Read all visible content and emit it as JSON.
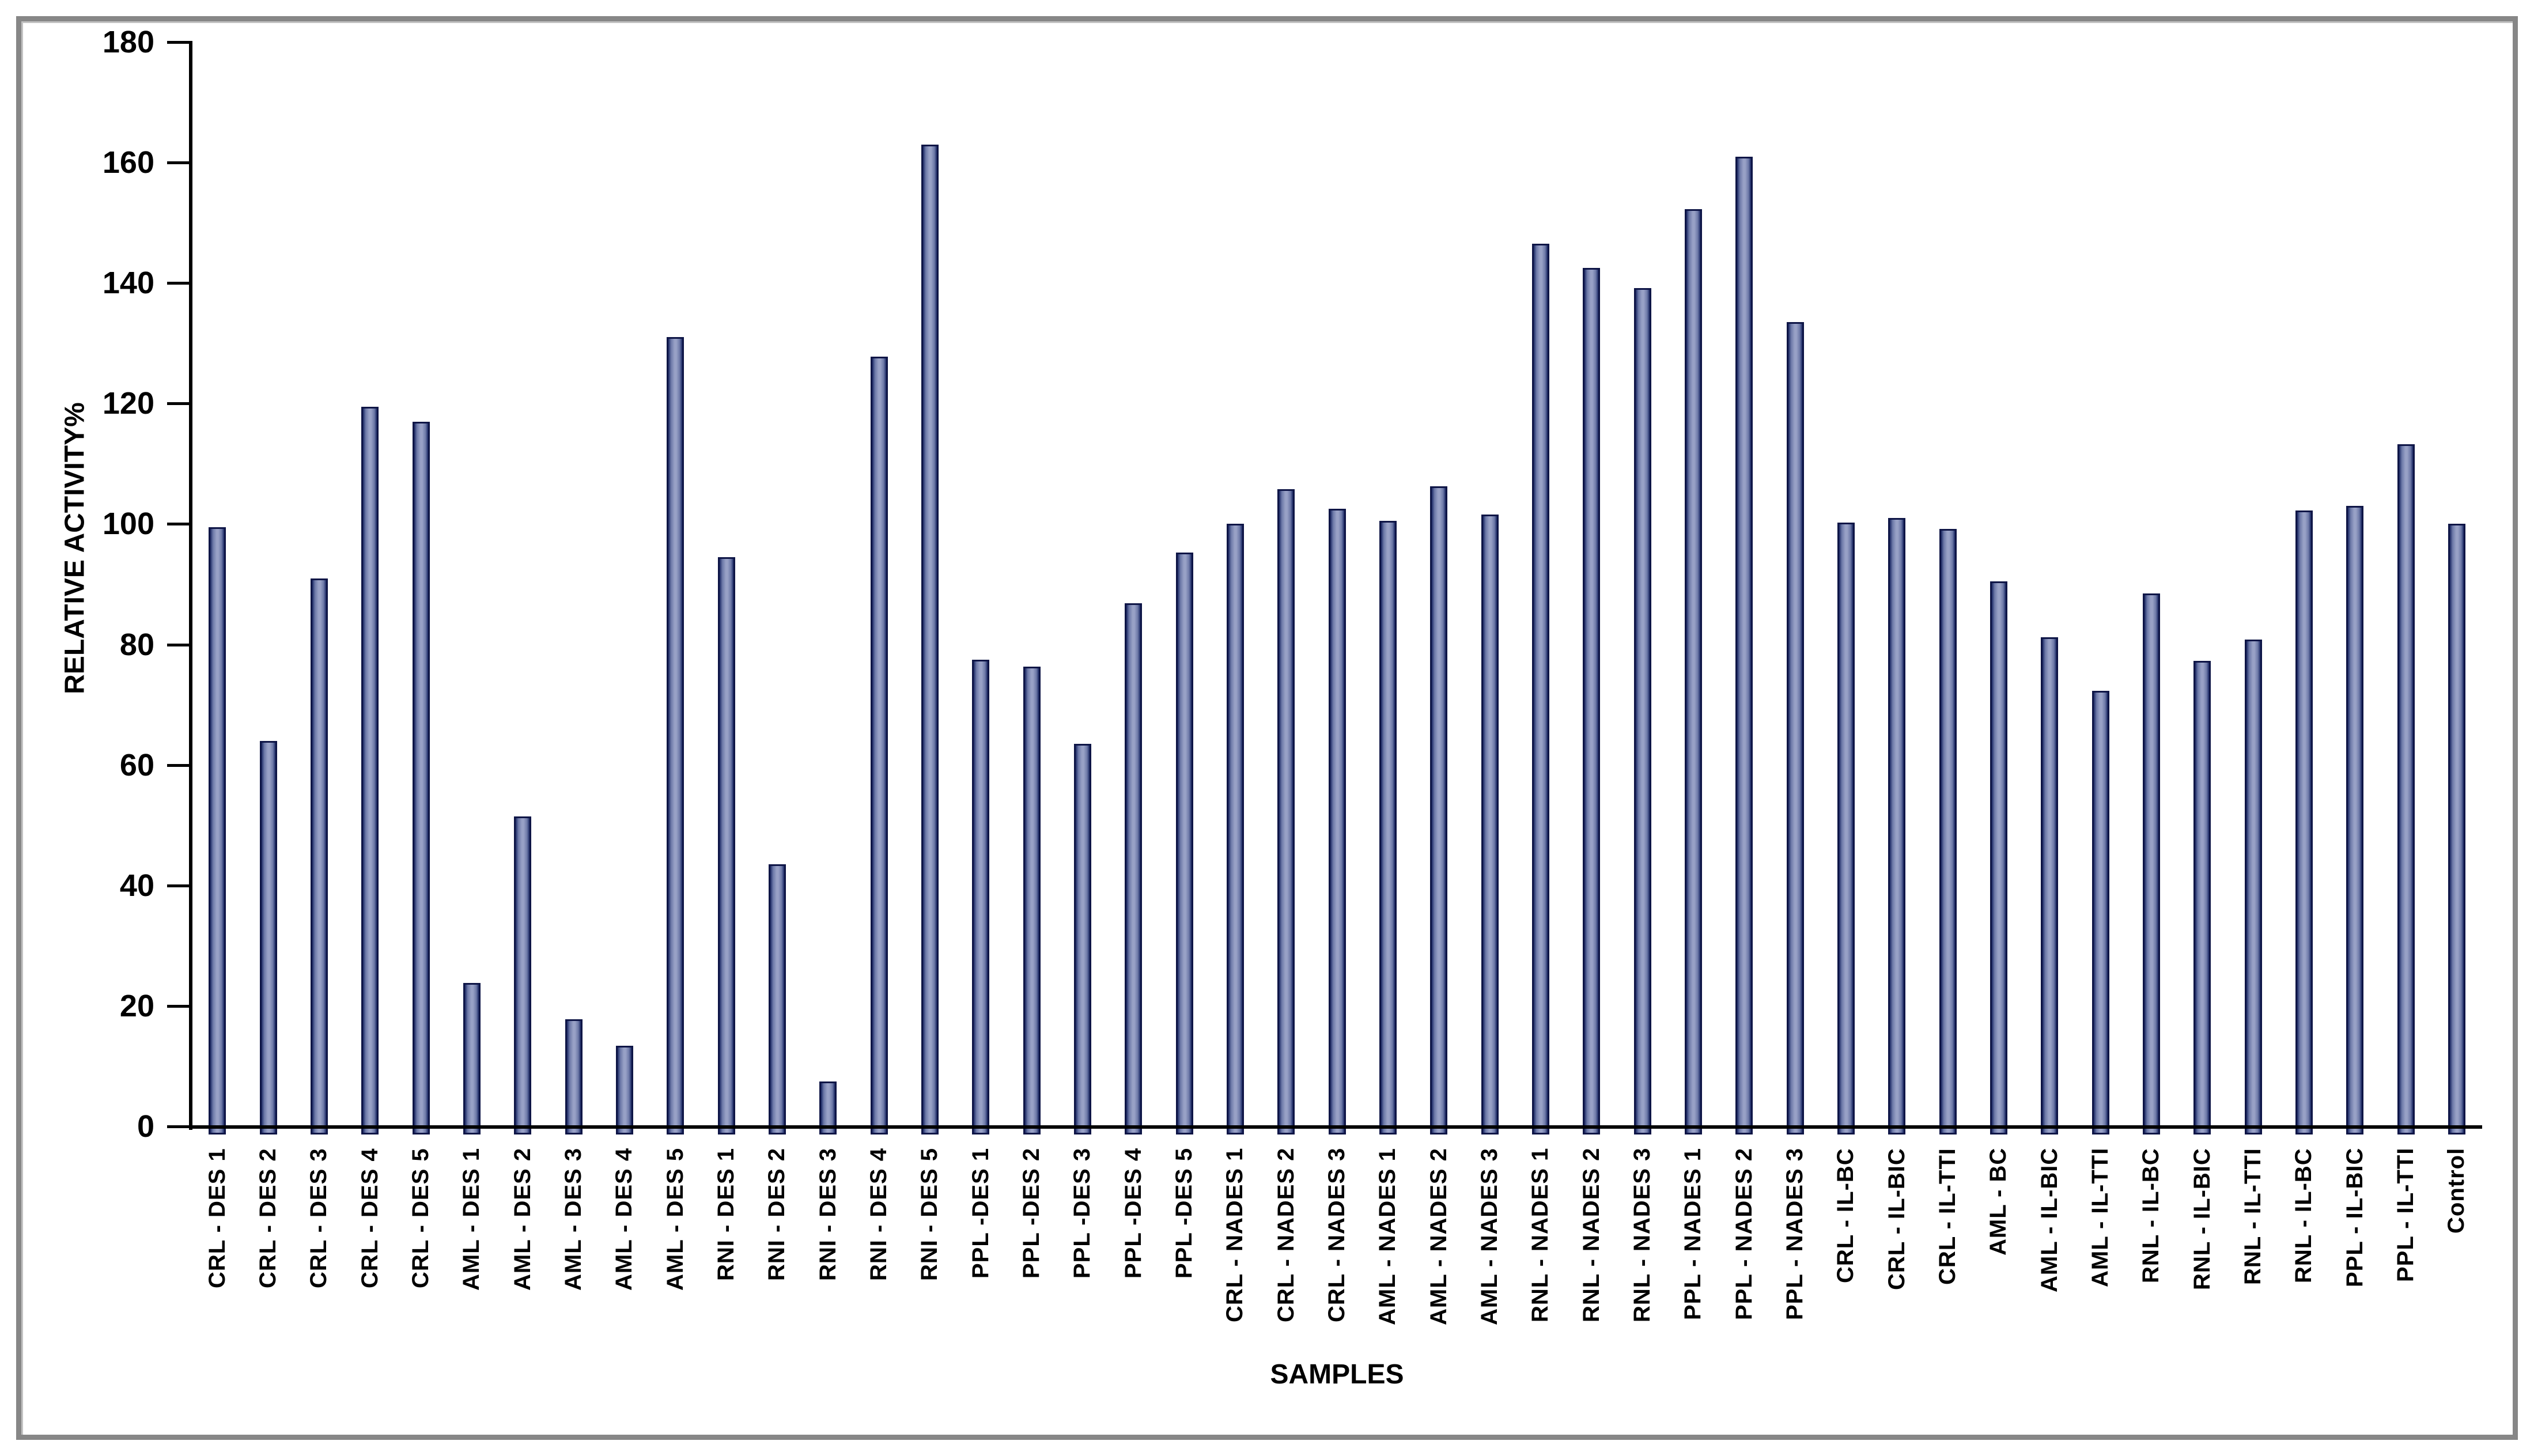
{
  "frame": {
    "border_color": "#878787",
    "inner_highlight_color": "#c2c2c2",
    "axis_color": "#000000",
    "background_color": "#ffffff"
  },
  "chart_data": {
    "type": "bar",
    "title": "",
    "xlabel": "SAMPLES",
    "ylabel": "RELATIVE ACTIVITY%",
    "ylim": [
      0,
      180
    ],
    "yticks": [
      0,
      20,
      40,
      60,
      80,
      100,
      120,
      140,
      160,
      180
    ],
    "grid": false,
    "legend_position": "none",
    "bar_fill_center": "#98a1c6",
    "bar_fill_mid": "#6d79a8",
    "bar_fill_edge": "#1d2a66",
    "bar_border": "#0e1546",
    "categories": [
      "CRL - DES 1",
      "CRL - DES 2",
      "CRL - DES 3",
      "CRL - DES 4",
      "CRL - DES 5",
      "AML - DES 1",
      "AML - DES 2",
      "AML - DES 3",
      "AML - DES 4",
      "AML - DES 5",
      "RNI - DES 1",
      "RNI - DES 2",
      "RNI - DES 3",
      "RNI - DES 4",
      "RNI - DES 5",
      "PPL -DES 1",
      "PPL -DES 2",
      "PPL -DES 3",
      "PPL -DES 4",
      "PPL -DES 5",
      "CRL - NADES 1",
      "CRL - NADES 2",
      "CRL - NADES 3",
      "AML - NADES 1",
      "AML - NADES 2",
      "AML - NADES 3",
      "RNL - NADES 1",
      "RNL - NADES 2",
      "RNL - NADES 3",
      "PPL - NADES 1",
      "PPL - NADES 2",
      "PPL - NADES 3",
      "CRL - IL-BC",
      "CRL - IL-BIC",
      "CRL - IL-TTI",
      "AML - BC",
      "AML - IL-BIC",
      "AML - IL-TTI",
      "RNL - IL-BC",
      "RNL - IL-BIC",
      "RNL - IL-TTI",
      "RNL - IL-BC",
      "PPL - IL-BIC",
      "PPL - IL-TTI",
      "Control"
    ],
    "values": [
      99.5,
      64,
      91,
      119.5,
      117,
      23.8,
      51.5,
      17.8,
      13.4,
      131,
      94.5,
      43.5,
      7.5,
      127.8,
      163,
      77.5,
      76.3,
      63.5,
      86.8,
      95.3,
      100,
      105.8,
      102.5,
      100.5,
      106.3,
      101.6,
      146.5,
      142.5,
      139.2,
      152.3,
      161,
      133.5,
      100.2,
      101,
      99.2,
      90.5,
      81.2,
      72.3,
      88.5,
      77.3,
      80.8,
      102.2,
      103,
      113.2,
      100
    ]
  }
}
